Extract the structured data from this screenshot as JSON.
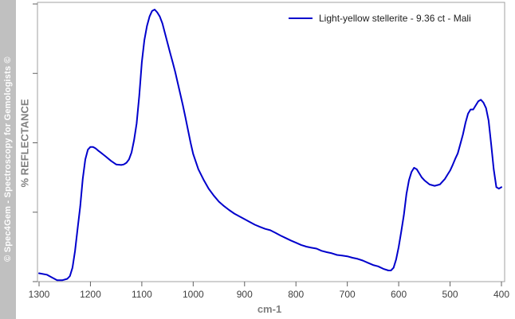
{
  "banner": {
    "text": "© Spec4Gem - Spectroscopy for Gemologists ©"
  },
  "chart_data": {
    "type": "line",
    "title": "",
    "xlabel": "cm-1",
    "ylabel": "% REFLECTANCE",
    "xlim": [
      1300,
      400
    ],
    "x_reversed": true,
    "ylim": [
      0,
      100
    ],
    "y_ticks_labeled": false,
    "x_ticks": [
      1300,
      1200,
      1100,
      1000,
      900,
      800,
      700,
      600,
      500,
      400
    ],
    "x_tick_labels": [
      "1300",
      "1200",
      "1100",
      "1000",
      "900",
      "800",
      "700",
      "600",
      "500",
      "400"
    ],
    "grid": false,
    "legend_position": "top-right",
    "series": [
      {
        "name": "Light-yellow stellerite - 9.36 ct - Mali",
        "color": "#0000cc",
        "x": [
          1300,
          1285,
          1275,
          1265,
          1255,
          1245,
          1240,
          1235,
          1230,
          1225,
          1220,
          1215,
          1210,
          1205,
          1200,
          1195,
          1190,
          1185,
          1180,
          1170,
          1160,
          1150,
          1140,
          1135,
          1130,
          1125,
          1120,
          1115,
          1110,
          1105,
          1100,
          1095,
          1090,
          1085,
          1080,
          1075,
          1070,
          1065,
          1060,
          1055,
          1050,
          1045,
          1040,
          1035,
          1030,
          1025,
          1020,
          1015,
          1010,
          1005,
          1000,
          990,
          980,
          970,
          960,
          950,
          940,
          930,
          920,
          910,
          900,
          890,
          880,
          870,
          860,
          850,
          840,
          830,
          820,
          810,
          800,
          790,
          780,
          770,
          760,
          750,
          740,
          730,
          720,
          710,
          700,
          690,
          680,
          670,
          660,
          650,
          640,
          630,
          620,
          615,
          610,
          605,
          600,
          595,
          590,
          585,
          580,
          575,
          570,
          565,
          560,
          555,
          550,
          540,
          530,
          520,
          515,
          510,
          505,
          500,
          495,
          490,
          485,
          480,
          475,
          470,
          465,
          460,
          455,
          450,
          445,
          440,
          435,
          430,
          425,
          420,
          415,
          410,
          405,
          400
        ],
        "y": [
          3,
          2.5,
          1.5,
          0.5,
          0.5,
          1,
          2,
          5,
          11,
          19,
          27,
          37,
          44,
          47.5,
          48.5,
          48.5,
          48,
          47.2,
          46.5,
          45,
          43.5,
          42.2,
          42,
          42.2,
          42.8,
          44,
          46.5,
          51,
          57,
          67,
          79,
          87,
          92,
          95.5,
          97.5,
          98,
          97,
          95.5,
          93,
          89.5,
          86,
          82.5,
          79,
          75.5,
          71.5,
          67.5,
          63.5,
          59,
          54.5,
          50,
          46,
          40.5,
          36.8,
          33.5,
          31,
          28.8,
          27.2,
          25.8,
          24.5,
          23.5,
          22.5,
          21.5,
          20.5,
          19.7,
          19,
          18.5,
          17.6,
          16.6,
          15.7,
          14.8,
          14,
          13.2,
          12.6,
          12.2,
          11.9,
          11.1,
          10.6,
          10.2,
          9.6,
          9.4,
          9.1,
          8.6,
          8.2,
          7.6,
          6.8,
          6,
          5.5,
          4.6,
          4,
          4,
          5,
          8,
          12.5,
          18,
          24,
          31.5,
          36.5,
          39.5,
          41,
          40.5,
          39,
          37.5,
          36.5,
          35,
          34.5,
          35,
          36,
          37,
          38.5,
          40,
          42,
          44.2,
          46.2,
          49.5,
          53,
          57.2,
          60.5,
          62,
          62,
          63.5,
          65,
          65.5,
          64.5,
          62.5,
          58,
          49.5,
          40.5,
          34,
          33.5,
          34
        ]
      }
    ]
  }
}
